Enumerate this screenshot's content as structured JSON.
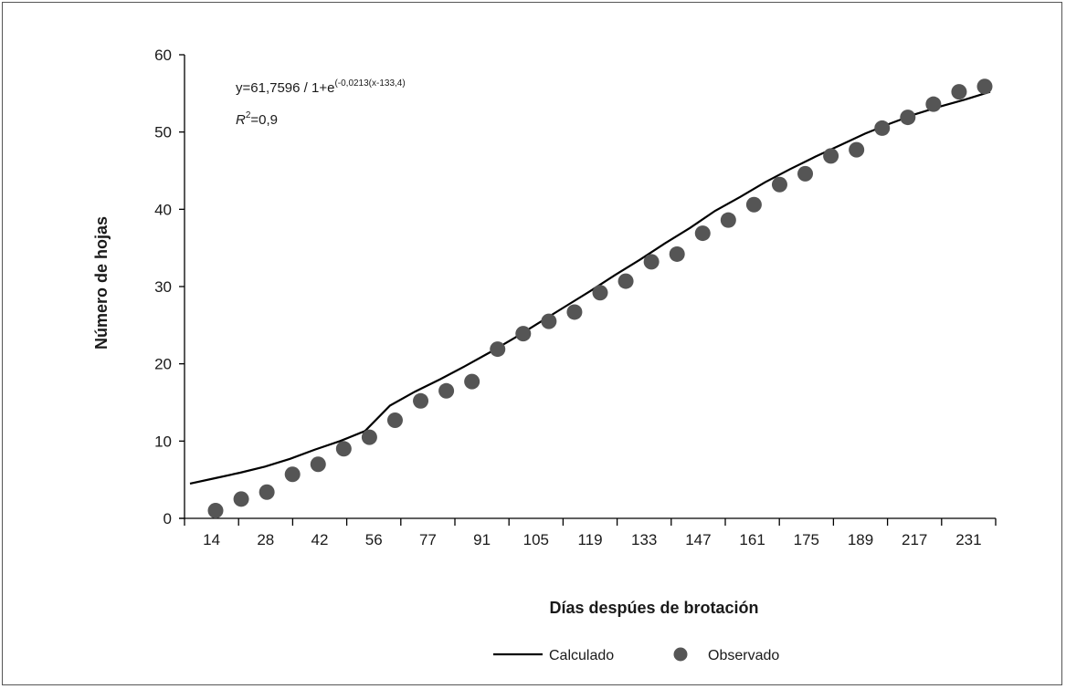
{
  "chart_data": {
    "type": "scatter",
    "title": "",
    "xlabel": "Días despúes de brotación",
    "ylabel": "Número de hojas",
    "ylim": [
      0,
      60
    ],
    "yticks": [
      0,
      10,
      20,
      30,
      40,
      50,
      60
    ],
    "x_tick_labels": [
      "14",
      "28",
      "42",
      "56",
      "77",
      "91",
      "105",
      "119",
      "133",
      "147",
      "161",
      "175",
      "189",
      "217",
      "231"
    ],
    "equation": {
      "prefix": "y=61,7596 / 1+e",
      "exponent": "(-0,0213(x-133,4)",
      "r2_label": "R",
      "r2_power": "2",
      "r2_value": "=0,9"
    },
    "legend": [
      {
        "label": "Calculado",
        "marker": "line"
      },
      {
        "label": "Observado",
        "marker": "dot"
      }
    ],
    "colors": {
      "line": "#000000",
      "points": "#555555"
    },
    "series": [
      {
        "name": "Observado",
        "kind": "points",
        "values": [
          1.0,
          2.5,
          3.4,
          5.7,
          7.0,
          9.0,
          10.5,
          12.7,
          15.2,
          16.5,
          17.7,
          21.9,
          23.9,
          25.5,
          26.7,
          29.2,
          30.7,
          33.2,
          34.2,
          36.9,
          38.6,
          40.6,
          43.2,
          44.6,
          46.9,
          47.7,
          50.5,
          51.9,
          53.6,
          55.2,
          55.9
        ]
      },
      {
        "name": "Calculado",
        "kind": "line",
        "values": [
          4.5,
          5.2,
          5.9,
          6.7,
          7.7,
          8.9,
          10.0,
          11.3,
          14.6,
          16.4,
          18.0,
          19.7,
          21.5,
          23.4,
          25.4,
          27.4,
          29.4,
          31.5,
          33.5,
          35.6,
          37.6,
          39.8,
          41.6,
          43.5,
          45.2,
          46.8,
          48.3,
          49.8,
          51.1,
          52.3,
          53.3,
          54.2,
          55.2
        ]
      }
    ]
  }
}
